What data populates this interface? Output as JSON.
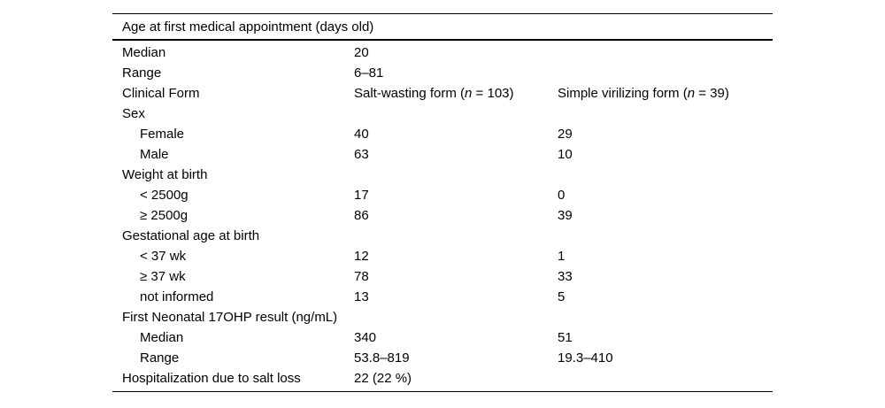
{
  "colors": {
    "background": "#ffffff",
    "text": "#000000",
    "rule": "#000000"
  },
  "table": {
    "header": "Age at first medical appointment (days old)",
    "rows": [
      {
        "label": "Median",
        "indent": false,
        "c2": "20",
        "c3": ""
      },
      {
        "label": "Range",
        "indent": false,
        "c2": "6–81",
        "c3": ""
      },
      {
        "label": "Clinical Form",
        "indent": false,
        "c2": [
          {
            "t": "Salt-wasting form ("
          },
          {
            "t": "n",
            "i": true
          },
          {
            "t": " = 103)"
          }
        ],
        "c3": [
          {
            "t": "Simple virilizing form ("
          },
          {
            "t": "n",
            "i": true
          },
          {
            "t": " = 39)"
          }
        ]
      },
      {
        "label": "Sex",
        "indent": false,
        "c2": "",
        "c3": ""
      },
      {
        "label": "Female",
        "indent": true,
        "c2": "40",
        "c3": "29"
      },
      {
        "label": "Male",
        "indent": true,
        "c2": "63",
        "c3": "10"
      },
      {
        "label": "Weight at birth",
        "indent": false,
        "c2": "",
        "c3": ""
      },
      {
        "label": "< 2500g",
        "indent": true,
        "c2": "17",
        "c3": "0"
      },
      {
        "label": "≥ 2500g",
        "indent": true,
        "c2": "86",
        "c3": "39"
      },
      {
        "label": "Gestational age at birth",
        "indent": false,
        "c2": "",
        "c3": ""
      },
      {
        "label": "< 37 wk",
        "indent": true,
        "c2": "12",
        "c3": "1"
      },
      {
        "label": "≥ 37 wk",
        "indent": true,
        "c2": "78",
        "c3": "33"
      },
      {
        "label": "not informed",
        "indent": true,
        "c2": "13",
        "c3": "5"
      },
      {
        "label": "First Neonatal 17OHP result (ng/mL)",
        "indent": false,
        "c2": "",
        "c3": ""
      },
      {
        "label": "Median",
        "indent": true,
        "c2": "340",
        "c3": "51"
      },
      {
        "label": "Range",
        "indent": true,
        "c2": "53.8–819",
        "c3": "19.3–410"
      },
      {
        "label": "Hospitalization due to salt loss",
        "indent": false,
        "c2": "22 (22 %)",
        "c3": ""
      }
    ]
  }
}
